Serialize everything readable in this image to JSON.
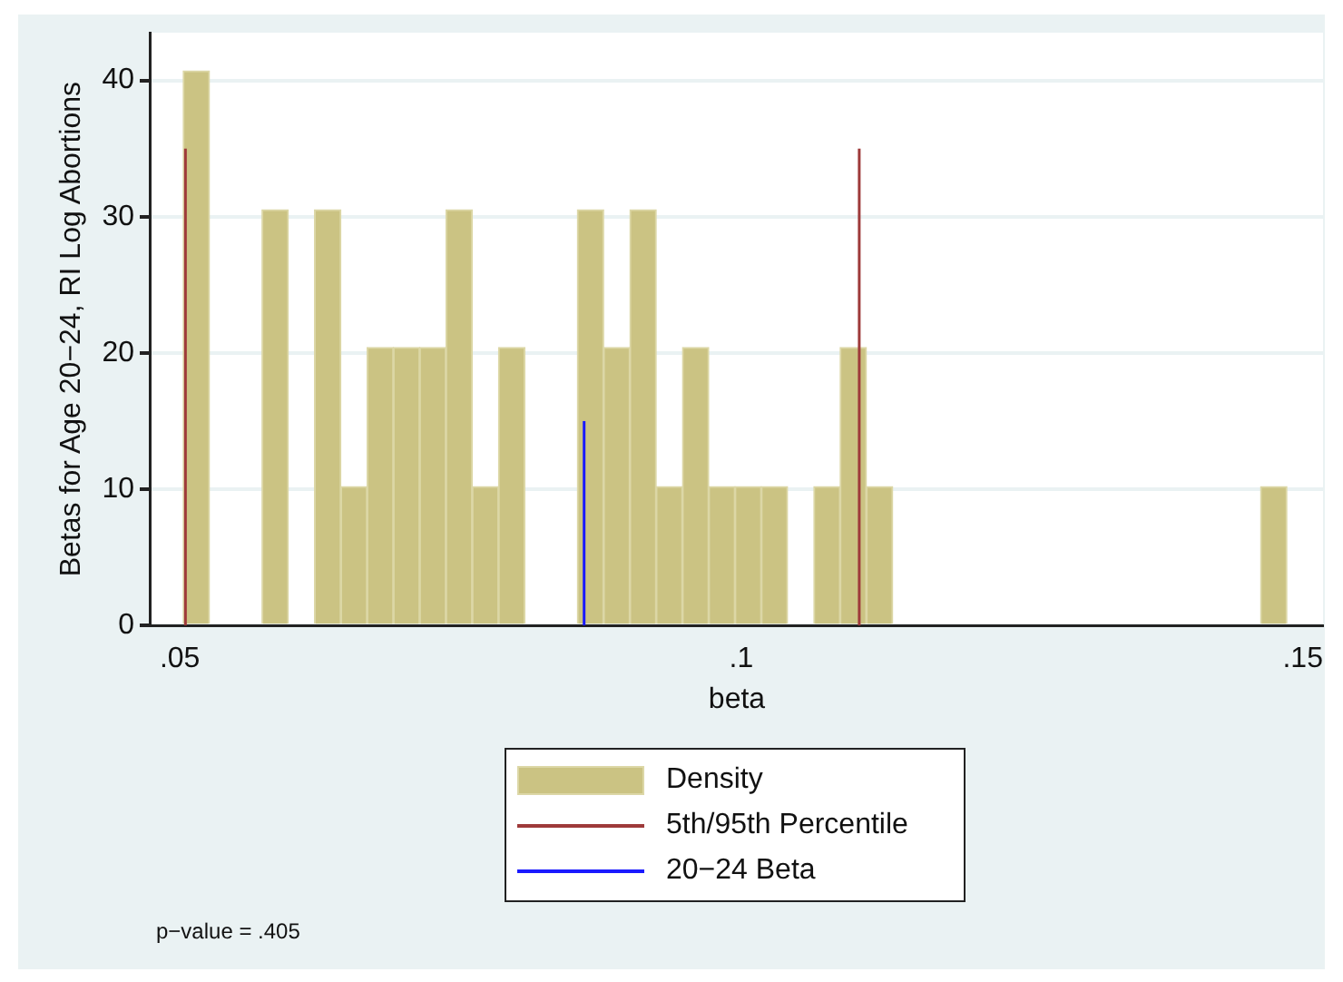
{
  "chart_data": {
    "type": "histogram",
    "xlabel": "beta",
    "ylabel": "Betas for Age 20−24, RI Log Abortions",
    "bins": [
      0.0503,
      0.05264,
      0.05498,
      0.05732,
      0.05966,
      0.062,
      0.06434,
      0.06668,
      0.06902,
      0.07136,
      0.0737,
      0.07604,
      0.07838,
      0.08072,
      0.08306,
      0.0854,
      0.08774,
      0.09008,
      0.09242,
      0.09476,
      0.0971,
      0.09944,
      0.10178,
      0.10412,
      0.10646,
      0.1088,
      0.11114,
      0.11348,
      0.11582,
      0.11816,
      0.1205,
      0.12284,
      0.12518,
      0.12752,
      0.12986,
      0.1322,
      0.13454,
      0.13688,
      0.13922,
      0.14156,
      0.1439,
      0.14624,
      0.14858
    ],
    "series": [
      {
        "name": "Density",
        "color": "#cbc383",
        "values": [
          40.7,
          0,
          0,
          30.5,
          0,
          30.5,
          10.2,
          20.4,
          20.4,
          20.4,
          30.5,
          10.2,
          20.4,
          0,
          0,
          30.5,
          20.4,
          30.5,
          10.2,
          20.4,
          10.2,
          10.2,
          10.2,
          0,
          10.2,
          20.4,
          10.2,
          0,
          0,
          0,
          0,
          0,
          0,
          0,
          0,
          0,
          0,
          0,
          0,
          0,
          0,
          10.2
        ]
      },
      {
        "name": "5th/95th Percentile",
        "type": "line",
        "color": "#9e3a3a",
        "x": [
          0.0505,
          0.0505
        ],
        "values": [
          0,
          35
        ]
      },
      {
        "type": "line",
        "color": "#9e3a3a",
        "x": [
          0.1105,
          0.1105
        ],
        "values": [
          0,
          35
        ]
      },
      {
        "name": "20−24 Beta",
        "type": "line",
        "color": "#1a1aff",
        "x": [
          0.086,
          0.086
        ],
        "values": [
          0,
          15
        ]
      }
    ],
    "xlim": [
      0.0474,
      0.1518
    ],
    "ylim": [
      0,
      43.5
    ],
    "xticks": [
      {
        "value": 0.05,
        "label": ".05"
      },
      {
        "value": 0.1,
        "label": ".1"
      },
      {
        "value": 0.15,
        "label": ".15"
      }
    ],
    "yticks": [
      0,
      10,
      20,
      30,
      40
    ],
    "grid": "y",
    "legend": "bottom",
    "line_style": "solid",
    "annotations": [
      "p−value = .405"
    ]
  }
}
